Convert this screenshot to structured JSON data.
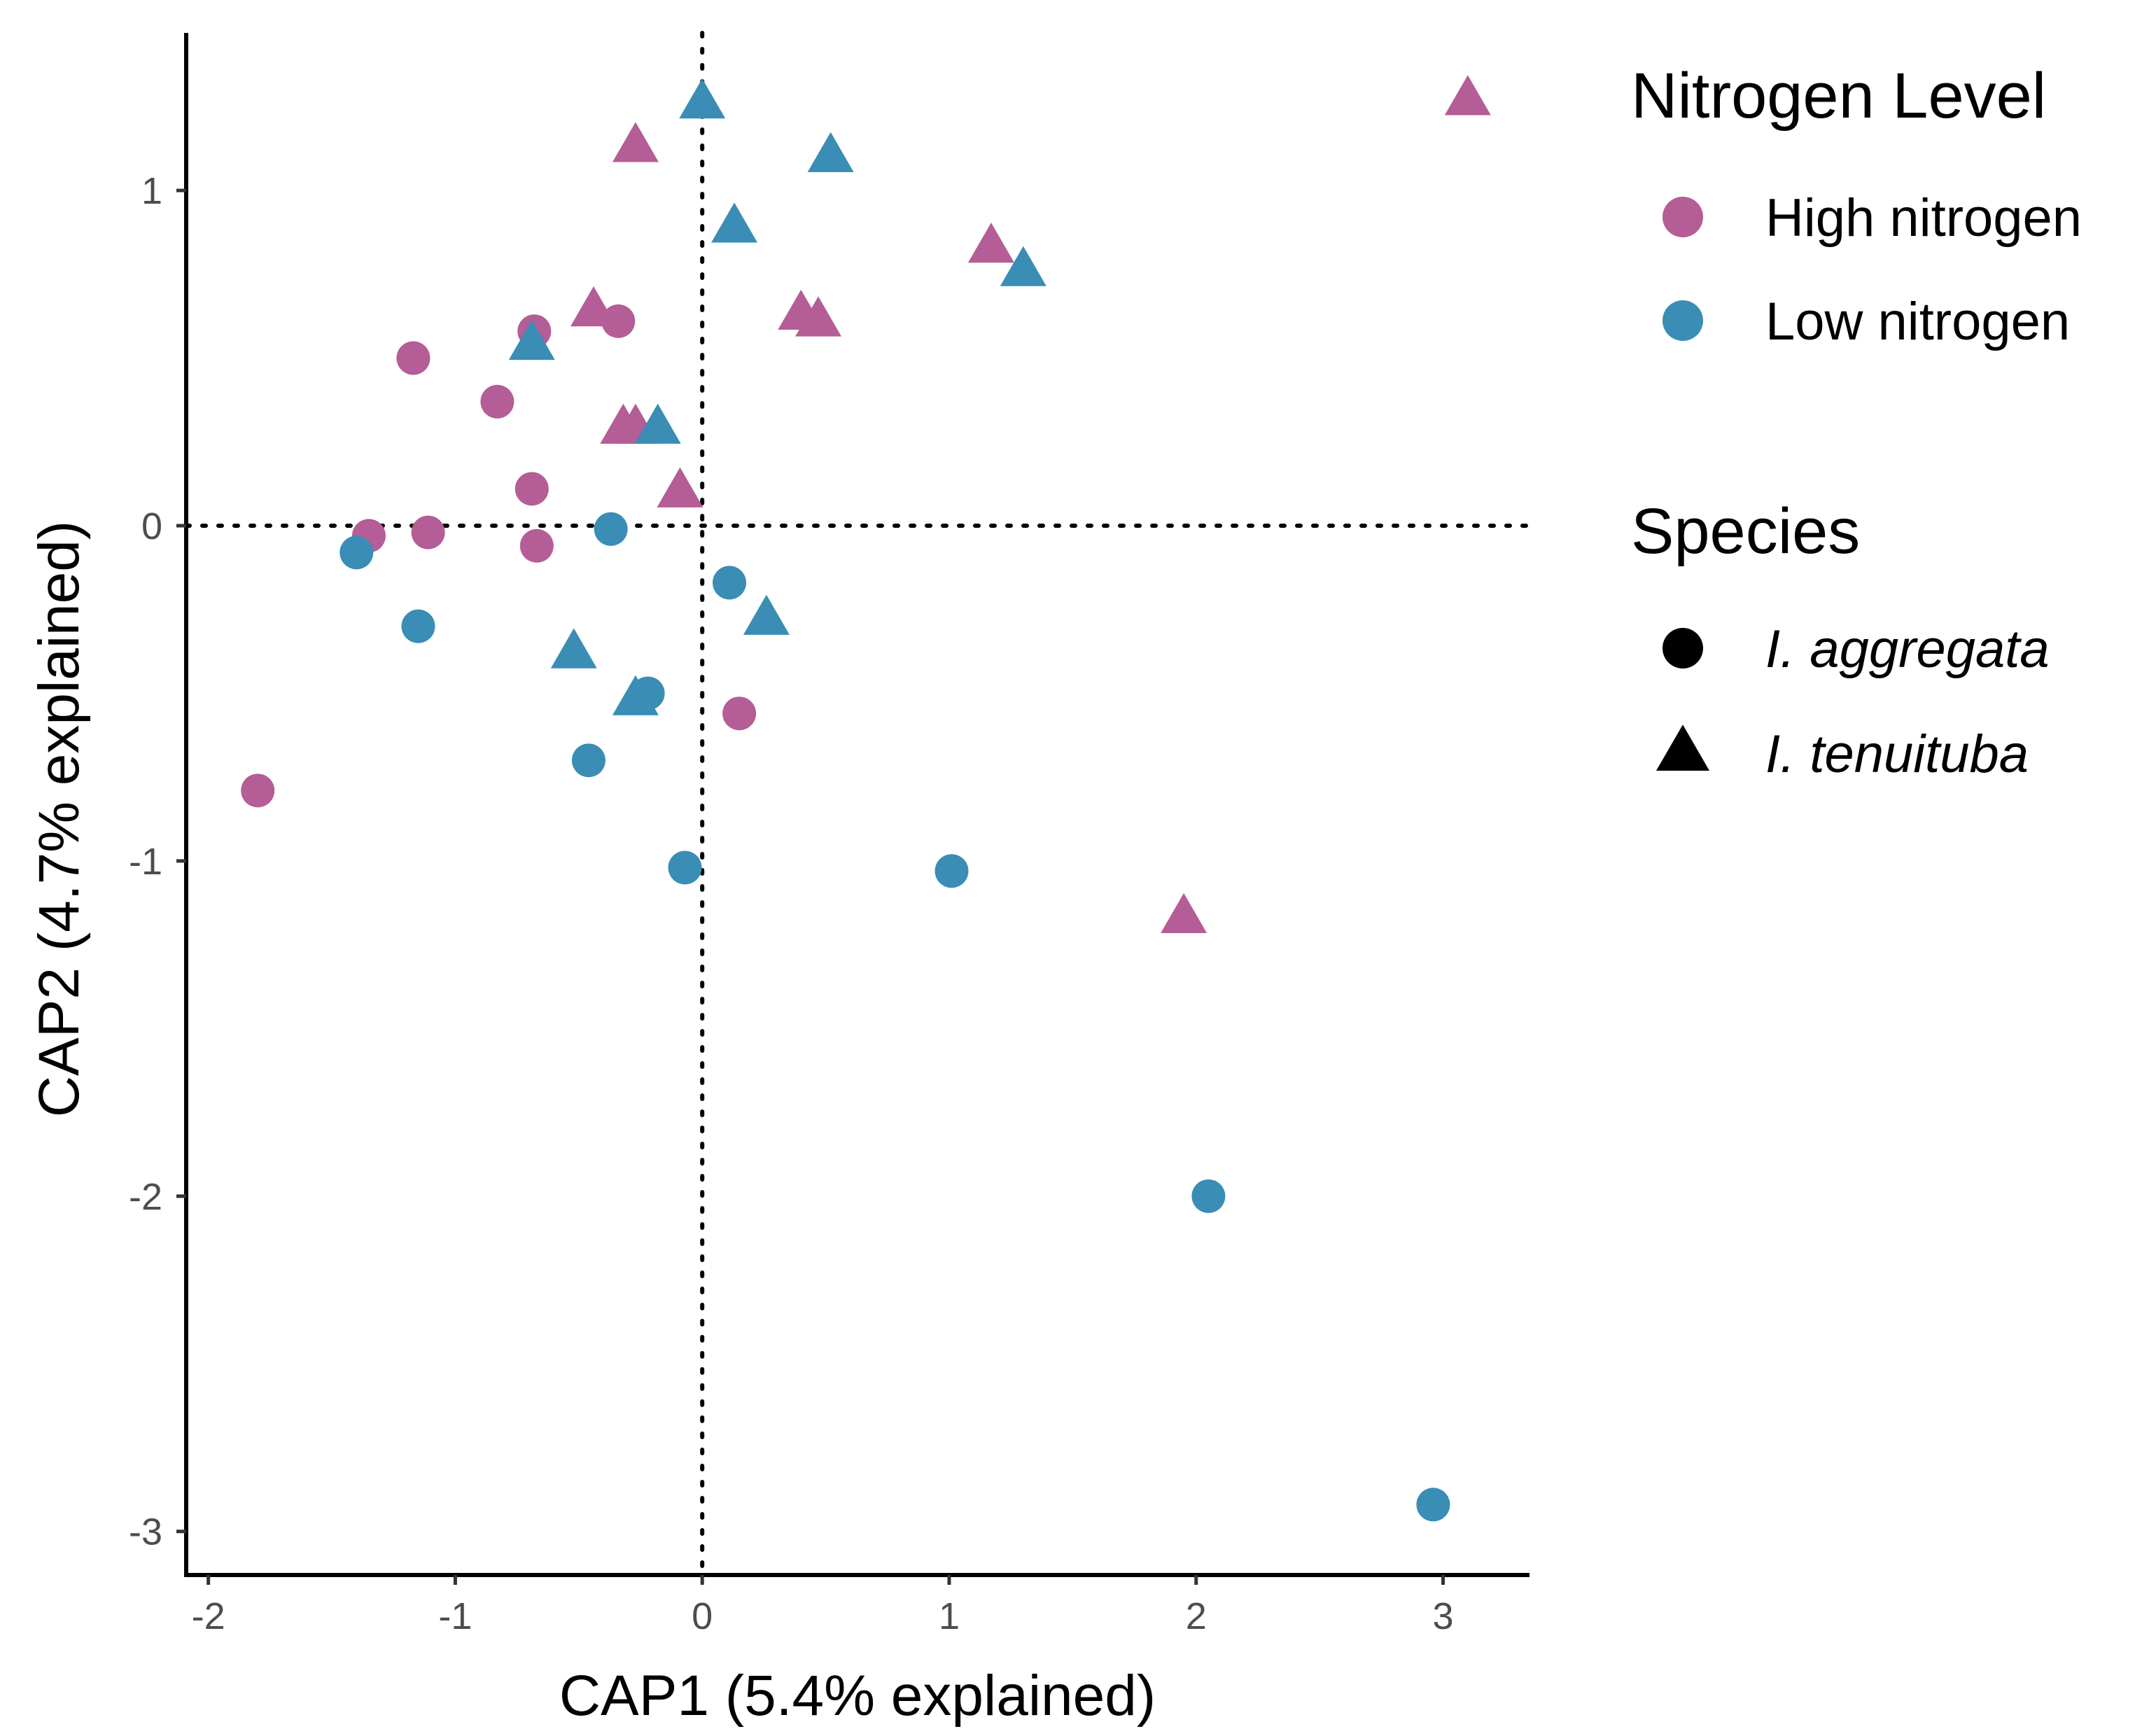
{
  "chart_data": {
    "type": "scatter",
    "title": "",
    "xlabel": "CAP1 (5.4% explained)",
    "ylabel": "CAP2 (4.7% explained)",
    "xlim": [
      -2.05,
      3.35
    ],
    "ylim": [
      -3.13,
      1.47
    ],
    "x_ticks": [
      {
        "value": -2,
        "label": "-2"
      },
      {
        "value": -1,
        "label": "-1"
      },
      {
        "value": 0,
        "label": "0"
      },
      {
        "value": 1,
        "label": "1"
      },
      {
        "value": 2,
        "label": "2"
      },
      {
        "value": 3,
        "label": "3"
      }
    ],
    "y_ticks": [
      {
        "value": 1,
        "label": "1"
      },
      {
        "value": 0,
        "label": "0"
      },
      {
        "value": -1,
        "label": "-1"
      },
      {
        "value": -2,
        "label": "-2"
      },
      {
        "value": -3,
        "label": "-3"
      }
    ],
    "reference_lines": {
      "x": 0,
      "y": 0,
      "style": "dotted"
    },
    "grid": false,
    "colors": {
      "High nitrogen": "#B45D96",
      "Low nitrogen": "#3A8DB5"
    },
    "legends": [
      {
        "title": "Nitrogen Level",
        "entries": [
          {
            "label": "High nitrogen",
            "shape": "circle",
            "color": "#B45D96"
          },
          {
            "label": "Low nitrogen",
            "shape": "circle",
            "color": "#3A8DB5"
          }
        ]
      },
      {
        "title": "Species",
        "entries": [
          {
            "label": "I. aggregata",
            "shape": "circle",
            "color": "#000000",
            "italic": true
          },
          {
            "label": "I. tenuituba",
            "shape": "triangle",
            "color": "#000000",
            "italic": true
          }
        ]
      }
    ],
    "legend_position": "right",
    "series": [
      {
        "nitrogen": "High nitrogen",
        "species": "I. aggregata",
        "shape": "circle",
        "points": [
          [
            -0.68,
            0.58
          ],
          [
            -0.34,
            0.61
          ],
          [
            -1.17,
            0.5
          ],
          [
            -0.83,
            0.37
          ],
          [
            -0.69,
            0.11
          ],
          [
            -1.35,
            -0.03
          ],
          [
            -1.11,
            -0.02
          ],
          [
            -0.67,
            -0.06
          ],
          [
            0.15,
            -0.56
          ],
          [
            -1.8,
            -0.79
          ]
        ]
      },
      {
        "nitrogen": "High nitrogen",
        "species": "I. tenuituba",
        "shape": "triangle",
        "points": [
          [
            -0.27,
            1.13
          ],
          [
            3.1,
            1.27
          ],
          [
            1.17,
            0.83
          ],
          [
            -0.44,
            0.64
          ],
          [
            0.4,
            0.63
          ],
          [
            0.47,
            0.61
          ],
          [
            -0.32,
            0.29
          ],
          [
            -0.27,
            0.29
          ],
          [
            -0.09,
            0.1
          ],
          [
            1.95,
            -1.17
          ]
        ]
      },
      {
        "nitrogen": "Low nitrogen",
        "species": "I. aggregata",
        "shape": "circle",
        "points": [
          [
            -0.37,
            -0.01
          ],
          [
            -1.4,
            -0.08
          ],
          [
            0.11,
            -0.17
          ],
          [
            -1.15,
            -0.3
          ],
          [
            -0.22,
            -0.5
          ],
          [
            -0.46,
            -0.7
          ],
          [
            -0.07,
            -1.02
          ],
          [
            1.01,
            -1.03
          ],
          [
            2.05,
            -2.0
          ],
          [
            2.96,
            -2.92
          ]
        ]
      },
      {
        "nitrogen": "Low nitrogen",
        "species": "I. tenuituba",
        "shape": "triangle",
        "points": [
          [
            0.0,
            1.26
          ],
          [
            0.52,
            1.1
          ],
          [
            0.13,
            0.89
          ],
          [
            1.3,
            0.76
          ],
          [
            -0.69,
            0.54
          ],
          [
            -0.18,
            0.29
          ],
          [
            0.26,
            -0.28
          ],
          [
            -0.52,
            -0.38
          ],
          [
            -0.27,
            -0.52
          ]
        ]
      }
    ]
  }
}
